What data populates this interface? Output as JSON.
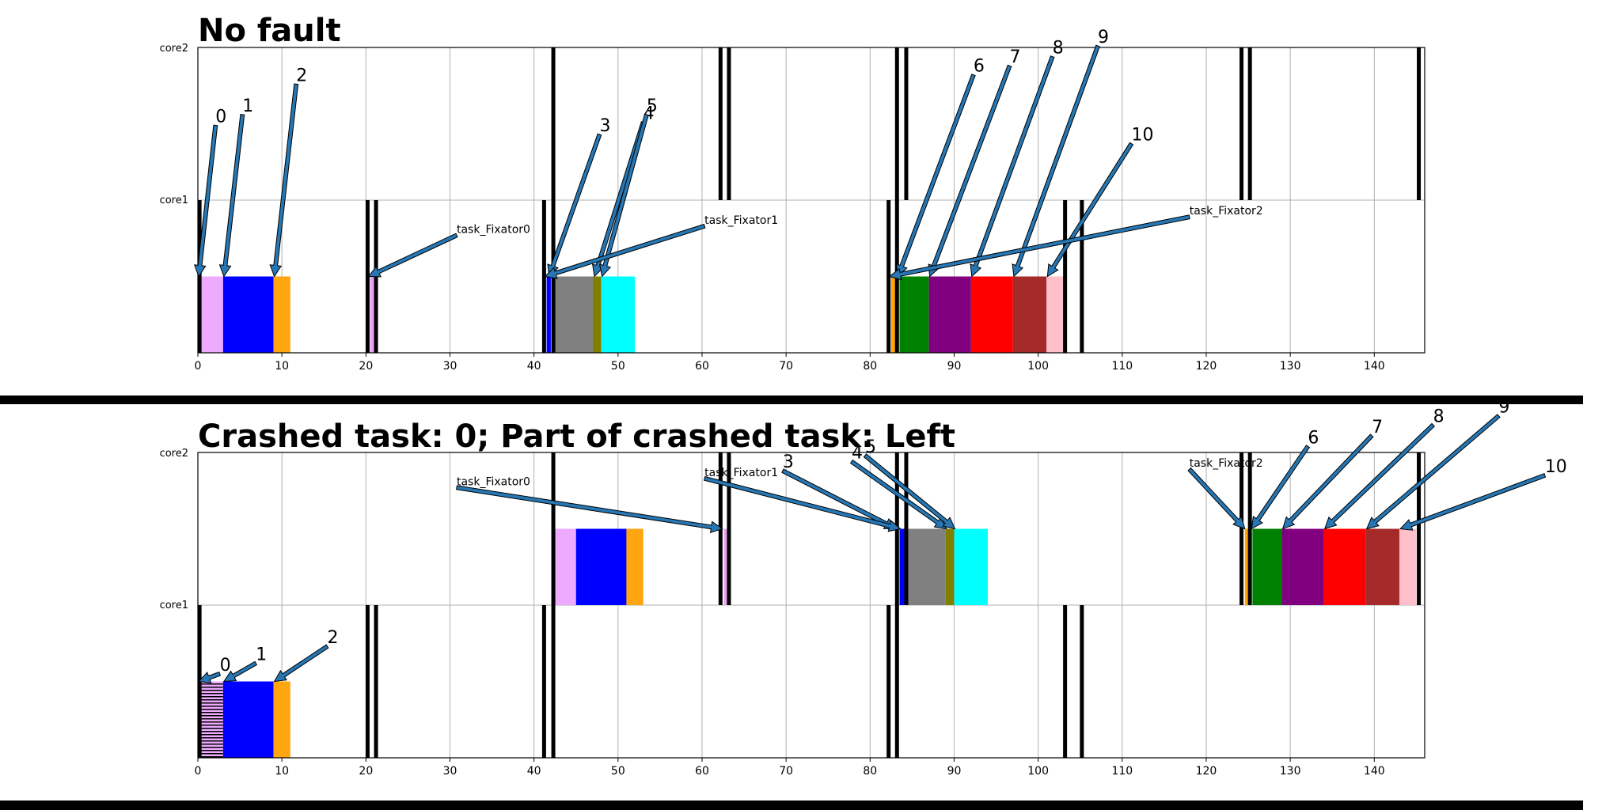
{
  "colors": {
    "black_band": "#000000",
    "arrow_fill": "#2677b4",
    "grid": "#b0b0b0",
    "tasks": [
      "#eeaaff",
      "#0000ff",
      "#ffa510",
      "#0000cc",
      "#808080",
      "#808000",
      "#00ffff",
      "#008000",
      "#800080",
      "#ff0000",
      "#a52a2a",
      "#ffc0cb"
    ],
    "fixator_pink": "#e8a0f0",
    "fixator_orange": "#ffa500",
    "fixator_blue": "#0000ff"
  },
  "chart_data": [
    {
      "type": "gantt",
      "title": "No fault",
      "yticks": [
        "core1",
        "core2"
      ],
      "xlim": [
        0,
        146
      ],
      "xticks": [
        0,
        10,
        20,
        30,
        40,
        50,
        60,
        70,
        80,
        90,
        100,
        110,
        120,
        130,
        140
      ],
      "grid": true,
      "tasks": [
        {
          "core": "core1",
          "start": 0.3,
          "end": 3,
          "color": "#eeaaff"
        },
        {
          "core": "core1",
          "start": 3,
          "end": 9,
          "color": "#0000ff"
        },
        {
          "core": "core1",
          "start": 9,
          "end": 11,
          "color": "#ffa510"
        },
        {
          "core": "core1",
          "start": 20.5,
          "end": 21,
          "color": "#e8a0f0"
        },
        {
          "core": "core1",
          "start": 41.5,
          "end": 42,
          "color": "#0000ff"
        },
        {
          "core": "core1",
          "start": 42.3,
          "end": 47,
          "color": "#808080"
        },
        {
          "core": "core1",
          "start": 47,
          "end": 48,
          "color": "#808000"
        },
        {
          "core": "core1",
          "start": 48,
          "end": 52,
          "color": "#00ffff"
        },
        {
          "core": "core1",
          "start": 82.5,
          "end": 83,
          "color": "#ffa500"
        },
        {
          "core": "core1",
          "start": 83.5,
          "end": 87,
          "color": "#008000"
        },
        {
          "core": "core1",
          "start": 87,
          "end": 92,
          "color": "#800080"
        },
        {
          "core": "core1",
          "start": 92,
          "end": 97,
          "color": "#ff0000"
        },
        {
          "core": "core1",
          "start": 97,
          "end": 101,
          "color": "#a52a2a"
        },
        {
          "core": "core1",
          "start": 101,
          "end": 103,
          "color": "#ffc0cb"
        }
      ],
      "bands": [
        {
          "core": "core1",
          "x": 0.2
        },
        {
          "core": "core1",
          "x": 20.2
        },
        {
          "core": "core1",
          "x": 21.2
        },
        {
          "core": "core1",
          "x": 41.2
        },
        {
          "core": "core1",
          "x": 42.3
        },
        {
          "core": "core1",
          "x": 82.2
        },
        {
          "core": "core1",
          "x": 83.2
        },
        {
          "core": "core1",
          "x": 103.2
        },
        {
          "core": "core1",
          "x": 105.2
        },
        {
          "core": "core2",
          "x": 42.3
        },
        {
          "core": "core2",
          "x": 62.2
        },
        {
          "core": "core2",
          "x": 63.2
        },
        {
          "core": "core2",
          "x": 83.2
        },
        {
          "core": "core2",
          "x": 84.3
        },
        {
          "core": "core2",
          "x": 124.2
        },
        {
          "core": "core2",
          "x": 125.2
        },
        {
          "core": "core2",
          "x": 145.3
        }
      ],
      "annotations": [
        {
          "label": "0",
          "kind": "num",
          "tx": 2.1,
          "ty": 1.49,
          "x": 0.1,
          "y": 0.5
        },
        {
          "label": "1",
          "kind": "num",
          "tx": 5.3,
          "ty": 1.56,
          "x": 3.1,
          "y": 0.5
        },
        {
          "label": "2",
          "kind": "num",
          "tx": 11.7,
          "ty": 1.76,
          "x": 9.1,
          "y": 0.5
        },
        {
          "label": "3",
          "kind": "num",
          "tx": 47.8,
          "ty": 1.43,
          "x": 41.8,
          "y": 0.5
        },
        {
          "label": "4",
          "kind": "num",
          "tx": 53.0,
          "ty": 1.51,
          "x": 47.2,
          "y": 0.5
        },
        {
          "label": "5",
          "kind": "num",
          "tx": 53.4,
          "ty": 1.56,
          "x": 48.1,
          "y": 0.5
        },
        {
          "label": "6",
          "kind": "num",
          "tx": 92.3,
          "ty": 1.82,
          "x": 83.3,
          "y": 0.5
        },
        {
          "label": "7",
          "kind": "num",
          "tx": 96.6,
          "ty": 1.88,
          "x": 87.1,
          "y": 0.5
        },
        {
          "label": "8",
          "kind": "num",
          "tx": 101.7,
          "ty": 1.94,
          "x": 92.1,
          "y": 0.5
        },
        {
          "label": "9",
          "kind": "num",
          "tx": 107.1,
          "ty": 2.01,
          "x": 97.1,
          "y": 0.5
        },
        {
          "label": "10",
          "kind": "num",
          "tx": 111.1,
          "ty": 1.37,
          "x": 101.1,
          "y": 0.5
        },
        {
          "label": "task_Fixator0",
          "kind": "task",
          "tx": 30.8,
          "ty": 0.77,
          "x": 20.3,
          "y": 0.5
        },
        {
          "label": "task_Fixator1",
          "kind": "task",
          "tx": 60.3,
          "ty": 0.83,
          "x": 41.3,
          "y": 0.5
        },
        {
          "label": "task_Fixator2",
          "kind": "task",
          "tx": 118.0,
          "ty": 0.89,
          "x": 82.3,
          "y": 0.5
        }
      ]
    },
    {
      "type": "gantt",
      "title": "Crashed task: 0; Part of crashed task: Left",
      "yticks": [
        "core1",
        "core2"
      ],
      "xlim": [
        0,
        146
      ],
      "xticks": [
        0,
        10,
        20,
        30,
        40,
        50,
        60,
        70,
        80,
        90,
        100,
        110,
        120,
        130,
        140
      ],
      "grid": true,
      "tasks": [
        {
          "core": "core1",
          "start": 0.3,
          "end": 3,
          "color": "#eeaaff",
          "hatch": true
        },
        {
          "core": "core1",
          "start": 3,
          "end": 9,
          "color": "#0000ff"
        },
        {
          "core": "core1",
          "start": 9,
          "end": 11,
          "color": "#ffa510"
        },
        {
          "core": "core2",
          "start": 42.3,
          "end": 45,
          "color": "#eeaaff"
        },
        {
          "core": "core2",
          "start": 45,
          "end": 51,
          "color": "#0000ff"
        },
        {
          "core": "core2",
          "start": 51,
          "end": 53,
          "color": "#ffa510"
        },
        {
          "core": "core2",
          "start": 62.6,
          "end": 63.1,
          "color": "#e8a0f0"
        },
        {
          "core": "core2",
          "start": 83.5,
          "end": 84.3,
          "color": "#0000ff"
        },
        {
          "core": "core2",
          "start": 84.3,
          "end": 89,
          "color": "#808080"
        },
        {
          "core": "core2",
          "start": 89,
          "end": 90,
          "color": "#808000"
        },
        {
          "core": "core2",
          "start": 90,
          "end": 94,
          "color": "#00ffff"
        },
        {
          "core": "core2",
          "start": 124.6,
          "end": 125,
          "color": "#ffa500"
        },
        {
          "core": "core2",
          "start": 125.5,
          "end": 129,
          "color": "#008000"
        },
        {
          "core": "core2",
          "start": 129,
          "end": 134,
          "color": "#800080"
        },
        {
          "core": "core2",
          "start": 134,
          "end": 139,
          "color": "#ff0000"
        },
        {
          "core": "core2",
          "start": 139,
          "end": 143,
          "color": "#a52a2a"
        },
        {
          "core": "core2",
          "start": 143,
          "end": 145,
          "color": "#ffc0cb"
        }
      ],
      "bands": [
        {
          "core": "core1",
          "x": 0.2
        },
        {
          "core": "core1",
          "x": 20.2
        },
        {
          "core": "core1",
          "x": 21.2
        },
        {
          "core": "core1",
          "x": 41.2
        },
        {
          "core": "core1",
          "x": 42.3
        },
        {
          "core": "core1",
          "x": 82.2
        },
        {
          "core": "core1",
          "x": 83.2
        },
        {
          "core": "core1",
          "x": 103.2
        },
        {
          "core": "core1",
          "x": 105.2
        },
        {
          "core": "core2",
          "x": 42.3
        },
        {
          "core": "core2",
          "x": 62.2
        },
        {
          "core": "core2",
          "x": 63.2
        },
        {
          "core": "core2",
          "x": 83.2
        },
        {
          "core": "core2",
          "x": 84.3
        },
        {
          "core": "core2",
          "x": 124.2
        },
        {
          "core": "core2",
          "x": 125.2
        },
        {
          "core": "core2",
          "x": 145.3
        }
      ],
      "annotations": [
        {
          "label": "0",
          "kind": "num",
          "tx": 2.6,
          "ty": 0.55,
          "x": 0.1,
          "y": 0.5
        },
        {
          "label": "1",
          "kind": "num",
          "tx": 6.9,
          "ty": 0.62,
          "x": 3.1,
          "y": 0.5
        },
        {
          "label": "2",
          "kind": "num",
          "tx": 15.4,
          "ty": 0.73,
          "x": 9.1,
          "y": 0.5
        },
        {
          "label": "task_Fixator0",
          "kind": "task",
          "tx": 30.8,
          "ty": 1.77,
          "x": 62.4,
          "y": 1.5
        },
        {
          "label": "3",
          "kind": "num",
          "tx": 69.6,
          "ty": 1.88,
          "x": 83.1,
          "y": 1.5
        },
        {
          "label": "task_Fixator1",
          "kind": "task",
          "tx": 60.3,
          "ty": 1.83,
          "x": 83.6,
          "y": 1.5
        },
        {
          "label": "4",
          "kind": "num",
          "tx": 77.8,
          "ty": 1.94,
          "x": 89.1,
          "y": 1.5
        },
        {
          "label": "5",
          "kind": "num",
          "tx": 79.4,
          "ty": 1.98,
          "x": 90.1,
          "y": 1.5
        },
        {
          "label": "task_Fixator2",
          "kind": "task",
          "tx": 118.0,
          "ty": 1.89,
          "x": 124.6,
          "y": 1.5
        },
        {
          "label": "6",
          "kind": "num",
          "tx": 132.1,
          "ty": 2.04,
          "x": 125.4,
          "y": 1.5
        },
        {
          "label": "7",
          "kind": "num",
          "tx": 139.7,
          "ty": 2.11,
          "x": 129.1,
          "y": 1.5
        },
        {
          "label": "8",
          "kind": "num",
          "tx": 147.0,
          "ty": 2.18,
          "x": 134.1,
          "y": 1.5
        },
        {
          "label": "9",
          "kind": "num",
          "tx": 154.8,
          "ty": 2.24,
          "x": 139.1,
          "y": 1.5
        },
        {
          "label": "10",
          "kind": "num",
          "tx": 160.3,
          "ty": 1.85,
          "x": 143.1,
          "y": 1.5
        }
      ]
    }
  ]
}
